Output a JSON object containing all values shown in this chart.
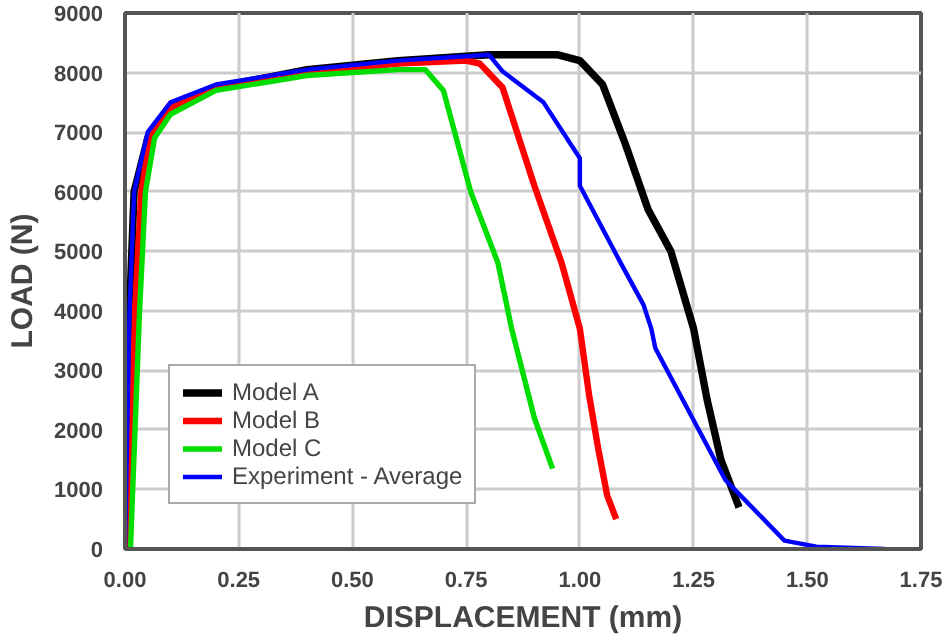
{
  "chart_data": {
    "type": "line",
    "xlabel": "DISPLACEMENT (mm)",
    "ylabel": "LOAD (N)",
    "xlim": [
      0,
      1.75
    ],
    "ylim": [
      0,
      9000
    ],
    "xticks": [
      {
        "value": 0,
        "label": "0.00"
      },
      {
        "value": 0.25,
        "label": "0.25"
      },
      {
        "value": 0.5,
        "label": "0.50"
      },
      {
        "value": 0.75,
        "label": "0.75"
      },
      {
        "value": 1,
        "label": "1.00"
      },
      {
        "value": 1.25,
        "label": "1.25"
      },
      {
        "value": 1.5,
        "label": "1.50"
      },
      {
        "value": 1.75,
        "label": "1.75"
      }
    ],
    "yticks": [
      0,
      1000,
      2000,
      3000,
      4000,
      5000,
      6000,
      7000,
      8000,
      9000
    ],
    "grid": true,
    "legend": "bottom left",
    "marker": "none",
    "line_style": "solid",
    "series": [
      {
        "name": "Model A",
        "color": "#000000",
        "x": [
          0,
          0.01,
          0.02,
          0.05,
          0.1,
          0.2,
          0.4,
          0.6,
          0.8,
          0.95,
          1.0,
          1.05,
          1.1,
          1.15,
          1.2,
          1.25,
          1.28,
          1.31,
          1.35
        ],
        "values": [
          0,
          4000,
          6000,
          6900,
          7400,
          7750,
          8050,
          8200,
          8300,
          8300,
          8200,
          7800,
          6800,
          5700,
          5000,
          3700,
          2500,
          1500,
          700
        ]
      },
      {
        "name": "Model B",
        "color": "#ff0000",
        "x": [
          0.006,
          0.022,
          0.036,
          0.055,
          0.1,
          0.2,
          0.4,
          0.6,
          0.75,
          0.78,
          0.83,
          0.9,
          0.96,
          1.0,
          1.02,
          1.04,
          1.06,
          1.08
        ],
        "values": [
          0,
          4000,
          6000,
          6900,
          7400,
          7750,
          8000,
          8150,
          8200,
          8150,
          7750,
          6100,
          4800,
          3700,
          2600,
          1700,
          900,
          500
        ]
      },
      {
        "name": "Model C",
        "color": "#00dd00",
        "x": [
          0.012,
          0.032,
          0.045,
          0.065,
          0.1,
          0.2,
          0.4,
          0.6,
          0.66,
          0.7,
          0.76,
          0.82,
          0.85,
          0.9,
          0.94
        ],
        "values": [
          0,
          4000,
          6000,
          6900,
          7300,
          7700,
          7950,
          8050,
          8050,
          7700,
          6000,
          4800,
          3700,
          2200,
          1350
        ]
      },
      {
        "name": "Experiment - Average",
        "color": "#0000ff",
        "x": [
          0,
          0.01,
          0.02,
          0.05,
          0.1,
          0.2,
          0.4,
          0.6,
          0.8,
          0.83,
          0.92,
          1.0,
          1.0,
          1.09,
          1.14,
          1.157,
          1.166,
          1.32,
          1.45,
          1.52,
          1.67
        ],
        "values": [
          0,
          4000,
          6000,
          7000,
          7500,
          7800,
          8050,
          8200,
          8300,
          8020,
          7500,
          6560,
          6100,
          4800,
          4100,
          3700,
          3370,
          1160,
          140,
          40,
          0
        ]
      }
    ]
  }
}
